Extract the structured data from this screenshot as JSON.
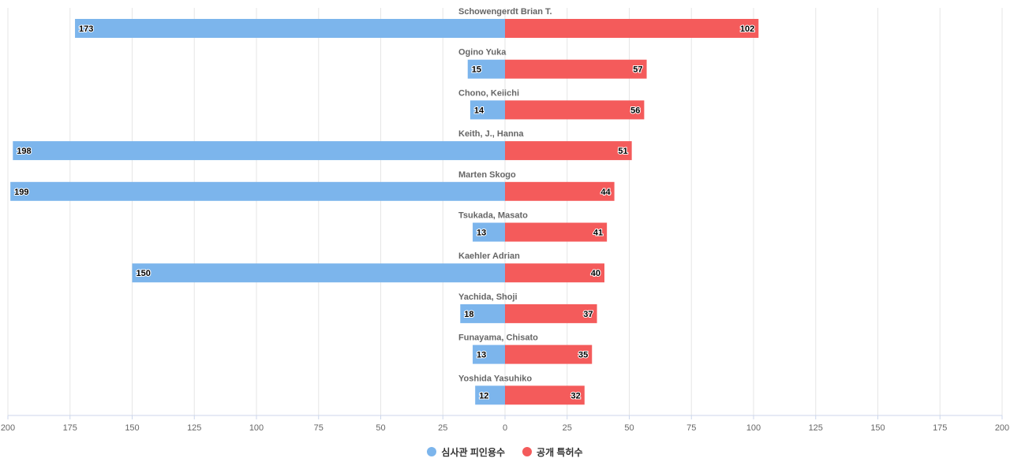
{
  "chart_data": {
    "type": "bar",
    "orientation": "horizontal-diverging",
    "categories": [
      "Schowengerdt Brian T.",
      "Ogino Yuka",
      "Chono, Keiichi",
      "Keith, J., Hanna",
      "Marten Skogo",
      "Tsukada, Masato",
      "Kaehler Adrian",
      "Yachida, Shoji",
      "Funayama, Chisato",
      "Yoshida Yasuhiko"
    ],
    "series": [
      {
        "name": "심사관 피인용수",
        "color": "#7cb5ec",
        "direction": "left",
        "values": [
          173,
          15,
          14,
          198,
          199,
          13,
          150,
          18,
          13,
          12
        ]
      },
      {
        "name": "공개 특허수",
        "color": "#f45b5b",
        "direction": "right",
        "values": [
          102,
          57,
          56,
          51,
          44,
          41,
          40,
          37,
          35,
          32
        ]
      }
    ],
    "xlim": [
      -200,
      200
    ],
    "tick_values": [
      -200,
      -175,
      -150,
      -125,
      -100,
      -75,
      -50,
      -25,
      0,
      25,
      50,
      75,
      100,
      125,
      150,
      175,
      200
    ],
    "tick_labels": [
      "200",
      "175",
      "150",
      "125",
      "100",
      "75",
      "50",
      "25",
      "0",
      "25",
      "50",
      "75",
      "100",
      "125",
      "150",
      "175",
      "200"
    ],
    "grid": true,
    "legend_position": "bottom-center",
    "data_labels": true,
    "title": "",
    "xlabel": "",
    "ylabel": ""
  }
}
